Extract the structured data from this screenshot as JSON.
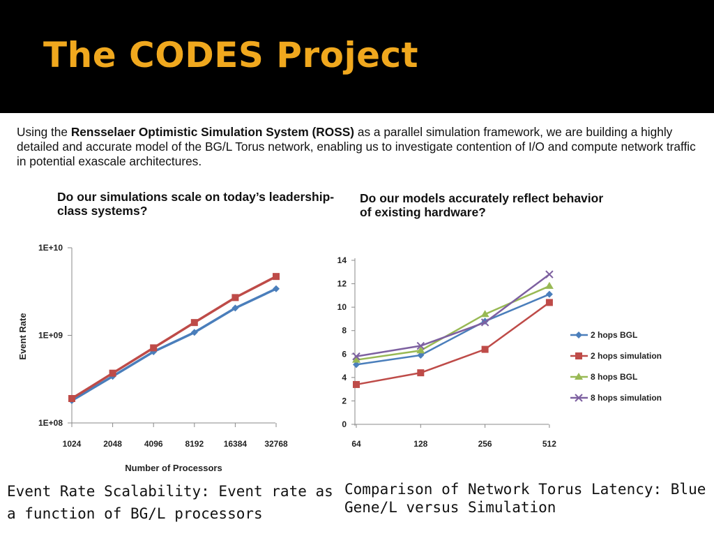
{
  "slide": {
    "title": "The CODES Project",
    "intro_prefix": "Using the ",
    "intro_bold": "Rensselaer Optimistic Simulation System (ROSS)",
    "intro_suffix": " as a parallel simulation framework, we are building a highly detailed and accurate model of the BG/L Torus network, enabling us to investigate contention of I/O and compute network traffic in potential exascale architectures.",
    "question_left": "Do our simulations scale on today’s leadership-class systems?",
    "question_right": "Do our models accurately reflect behavior of existing hardware?",
    "caption_left": "Event Rate Scalability:  Event rate as a function of BG/L processors",
    "caption_right": "Comparison of Network Torus Latency: Blue Gene/L versus Simulation"
  },
  "chart_data": [
    {
      "type": "line",
      "xlabel": "Number of Processors",
      "ylabel": "Event Rate",
      "x": [
        "1024",
        "2048",
        "4096",
        "8192",
        "16384",
        "32768"
      ],
      "y_scale": "log",
      "ylim": [
        100000000,
        10000000000
      ],
      "y_ticks": [
        "1E+08",
        "1E+09",
        "1E+10"
      ],
      "y_tick_values": [
        100000000,
        1000000000,
        10000000000
      ],
      "grid": false,
      "legend": "none",
      "series": [
        {
          "color": "#4a7ebb",
          "marker": "diamond",
          "values": [
            180000000,
            340000000,
            650000000,
            1080000000,
            2050000000,
            3400000000
          ]
        },
        {
          "color": "#be4b48",
          "marker": "square",
          "values": [
            190000000,
            370000000,
            720000000,
            1400000000,
            2700000000,
            4700000000
          ]
        }
      ]
    },
    {
      "type": "line",
      "x": [
        "64",
        "128",
        "256",
        "512"
      ],
      "ylim": [
        0,
        14
      ],
      "y_ticks": [
        "0",
        "2",
        "4",
        "6",
        "8",
        "10",
        "12",
        "14"
      ],
      "grid": false,
      "legend": "right",
      "series": [
        {
          "name": "2 hops BGL",
          "color": "#4a7ebb",
          "marker": "diamond",
          "values": [
            5.1,
            5.9,
            8.8,
            11.1
          ]
        },
        {
          "name": "2 hops simulation",
          "color": "#be4b48",
          "marker": "square",
          "values": [
            3.4,
            4.4,
            6.4,
            10.4
          ]
        },
        {
          "name": "8 hops BGL",
          "color": "#98b954",
          "marker": "triangle",
          "values": [
            5.5,
            6.3,
            9.4,
            11.8
          ]
        },
        {
          "name": "8 hops simulation",
          "color": "#7d60a0",
          "marker": "x",
          "values": [
            5.8,
            6.7,
            8.7,
            12.8
          ]
        }
      ]
    }
  ]
}
